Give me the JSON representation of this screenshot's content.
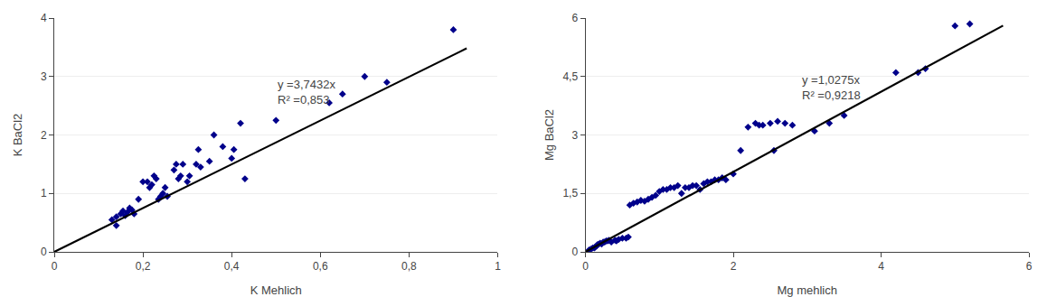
{
  "chart_data": [
    {
      "type": "scatter",
      "xlabel": "K Mehlich",
      "ylabel": "K BaCl2",
      "xlim": [
        0,
        1.0
      ],
      "ylim": [
        0,
        4.0
      ],
      "xticks": [
        0,
        {
          "value": 0.2,
          "label": "0,2"
        },
        {
          "value": 0.4,
          "label": "0,4"
        },
        {
          "value": 0.6,
          "label": "0,6"
        },
        {
          "value": 0.8,
          "label": "0,8"
        },
        1
      ],
      "yticks": [
        0,
        1,
        2,
        3,
        4
      ],
      "grid": "y",
      "annotations": [
        {
          "text": [
            "y =3,7432x",
            "R² =0,853"
          ],
          "x": 0.5,
          "y": 2.45
        }
      ],
      "series": [
        {
          "type": "scatter",
          "color": "#00008B",
          "marker": "diamond",
          "x": [
            0.13,
            0.14,
            0.14,
            0.15,
            0.155,
            0.16,
            0.165,
            0.17,
            0.175,
            0.18,
            0.19,
            0.2,
            0.21,
            0.215,
            0.22,
            0.225,
            0.23,
            0.235,
            0.24,
            0.245,
            0.25,
            0.255,
            0.27,
            0.275,
            0.28,
            0.285,
            0.29,
            0.3,
            0.305,
            0.32,
            0.325,
            0.33,
            0.35,
            0.36,
            0.38,
            0.4,
            0.405,
            0.42,
            0.43,
            0.5,
            0.62,
            0.65,
            0.7,
            0.75,
            0.9
          ],
          "values": [
            0.55,
            0.45,
            0.6,
            0.65,
            0.7,
            0.62,
            0.68,
            0.75,
            0.72,
            0.65,
            0.9,
            1.2,
            1.2,
            1.1,
            1.15,
            1.3,
            1.25,
            0.9,
            0.95,
            1.0,
            1.1,
            0.95,
            1.4,
            1.5,
            1.25,
            1.3,
            1.5,
            1.2,
            1.3,
            1.5,
            1.75,
            1.45,
            1.55,
            2.0,
            1.8,
            1.6,
            1.75,
            2.2,
            1.25,
            2.25,
            2.55,
            2.7,
            3.0,
            2.9,
            3.8
          ]
        },
        {
          "type": "line",
          "color": "#000000",
          "line_style": "solid",
          "x": [
            0.0,
            0.93
          ],
          "values": [
            0,
            3.481176
          ]
        }
      ]
    },
    {
      "type": "scatter",
      "xlabel": "Mg mehlich",
      "ylabel": "Mg BaCl2",
      "xlim": [
        0,
        6.0
      ],
      "ylim": [
        0,
        6.0
      ],
      "xticks": [
        0,
        2,
        4,
        6
      ],
      "yticks": [
        0,
        {
          "value": 1.5,
          "label": "1,5"
        },
        3,
        {
          "value": 4.5,
          "label": "4,5"
        },
        6
      ],
      "grid": "y",
      "annotations": [
        {
          "text": [
            "y =1,0275x",
            "R² =0,9218"
          ],
          "x": 2.9,
          "y": 3.8
        }
      ],
      "series": [
        {
          "type": "scatter",
          "color": "#00008B",
          "marker": "diamond",
          "x": [
            0.05,
            0.08,
            0.1,
            0.12,
            0.13,
            0.15,
            0.16,
            0.18,
            0.2,
            0.22,
            0.24,
            0.26,
            0.28,
            0.3,
            0.32,
            0.35,
            0.4,
            0.42,
            0.45,
            0.5,
            0.55,
            0.58,
            0.6,
            0.65,
            0.7,
            0.75,
            0.8,
            0.85,
            0.9,
            0.95,
            1.0,
            1.05,
            1.1,
            1.15,
            1.2,
            1.25,
            1.3,
            1.35,
            1.4,
            1.45,
            1.5,
            1.55,
            1.6,
            1.65,
            1.7,
            1.75,
            1.8,
            1.85,
            1.9,
            2.0,
            2.1,
            2.2,
            2.3,
            2.35,
            2.4,
            2.5,
            2.55,
            2.6,
            2.7,
            2.8,
            3.1,
            3.3,
            3.5,
            4.2,
            4.5,
            4.6,
            5.0,
            5.2
          ],
          "values": [
            0.05,
            0.08,
            0.1,
            0.1,
            0.12,
            0.15,
            0.18,
            0.2,
            0.22,
            0.2,
            0.25,
            0.25,
            0.28,
            0.28,
            0.3,
            0.25,
            0.3,
            0.28,
            0.32,
            0.35,
            0.35,
            0.38,
            1.2,
            1.25,
            1.28,
            1.32,
            1.3,
            1.35,
            1.4,
            1.45,
            1.55,
            1.6,
            1.6,
            1.65,
            1.65,
            1.7,
            1.5,
            1.65,
            1.65,
            1.7,
            1.7,
            1.6,
            1.75,
            1.8,
            1.8,
            1.85,
            1.85,
            1.9,
            1.85,
            2.0,
            2.6,
            3.2,
            3.3,
            3.25,
            3.25,
            3.3,
            2.6,
            3.35,
            3.3,
            3.25,
            3.1,
            3.3,
            3.5,
            4.6,
            4.6,
            4.7,
            5.8,
            5.85
          ]
        },
        {
          "type": "line",
          "color": "#000000",
          "line_style": "solid",
          "x": [
            0.0,
            5.65
          ],
          "values": [
            0,
            5.805375
          ]
        }
      ]
    }
  ]
}
